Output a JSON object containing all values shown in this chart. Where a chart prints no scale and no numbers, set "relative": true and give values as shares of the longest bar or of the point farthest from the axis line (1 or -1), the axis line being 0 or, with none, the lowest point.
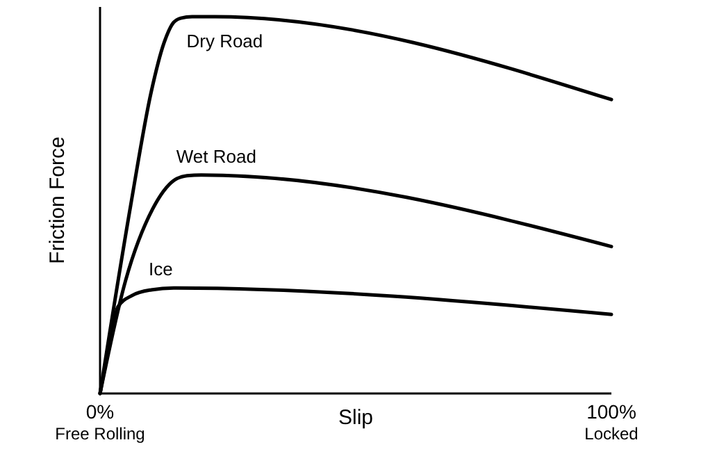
{
  "chart_data": {
    "type": "line",
    "relative": true,
    "xlabel": "Slip",
    "ylabel": "Friction Force",
    "xlim": [
      0,
      100
    ],
    "xticks": [
      {
        "value": 0,
        "label": "0%\nFree Rolling"
      },
      {
        "value": 100,
        "label": "100%\nLocked"
      }
    ],
    "grid": false,
    "marker": "none",
    "line_style": "solid",
    "color": "#000000",
    "series": [
      {
        "name": "Dry Road",
        "x": [
          0,
          6,
          10,
          12.5,
          14.4,
          15.8,
          18,
          22.5,
          100
        ],
        "values": [
          0,
          0.5,
          0.8,
          0.93,
          0.985,
          0.996,
          1.0,
          1.0,
          0.78
        ]
      },
      {
        "name": "Wet Road",
        "x": [
          0,
          5,
          10.3,
          14.4,
          17,
          19.8,
          100
        ],
        "values": [
          0,
          0.3,
          0.49,
          0.565,
          0.578,
          0.58,
          0.39
        ]
      },
      {
        "name": "Ice",
        "x": [
          0,
          2,
          3.5,
          6.25,
          10,
          14.4,
          100
        ],
        "values": [
          0,
          0.14,
          0.23,
          0.26,
          0.275,
          0.28,
          0.21
        ]
      }
    ]
  }
}
